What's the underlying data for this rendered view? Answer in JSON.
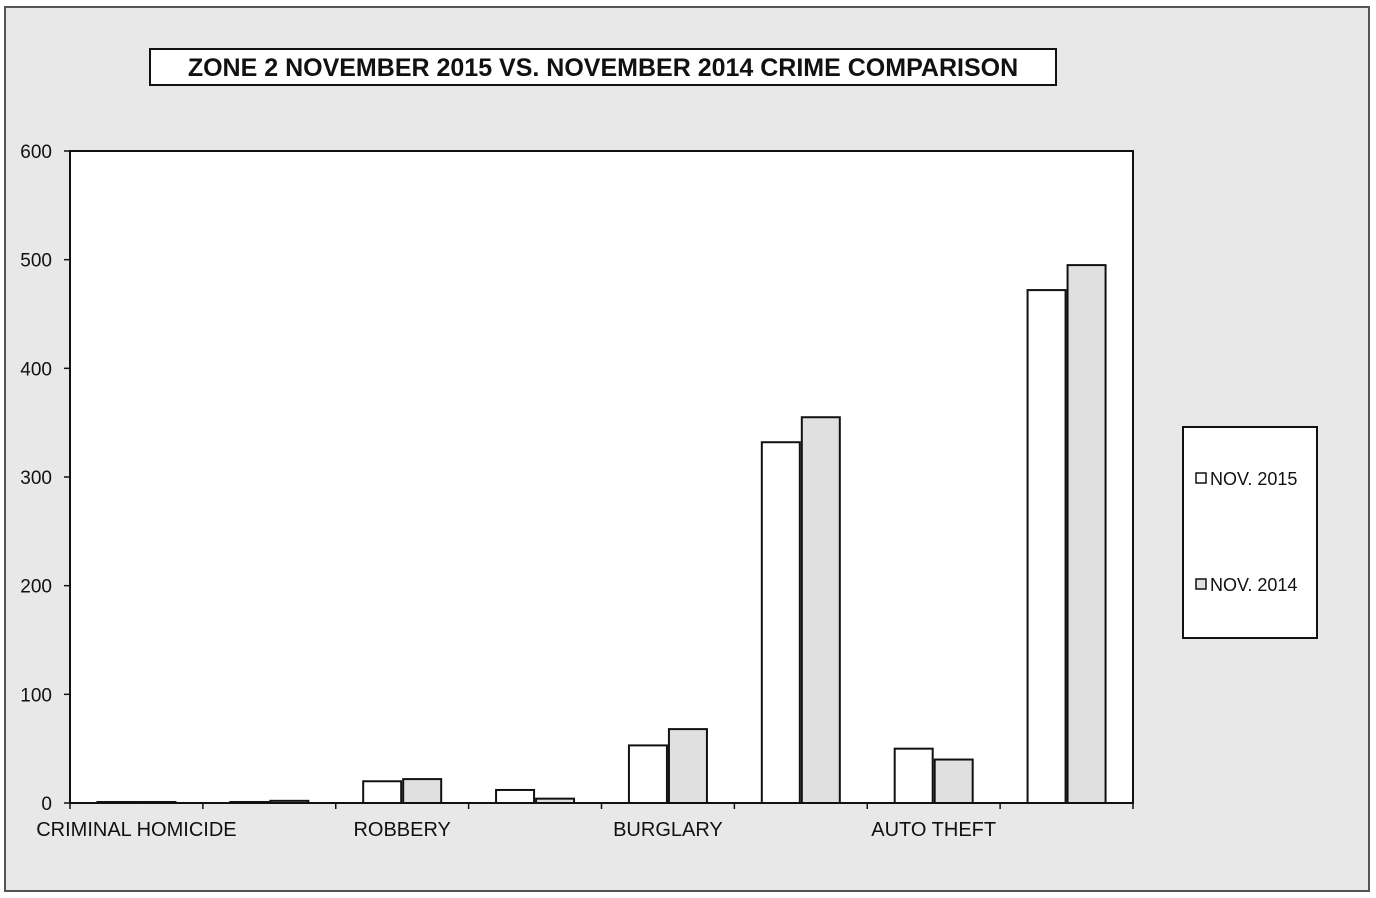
{
  "colors": {
    "background": "#e8e8e8",
    "plot_area": "#ffffff",
    "bar_2015": "#ffffff",
    "bar_2014": "#e0e0e0",
    "stroke": "#111111"
  },
  "chart_data": {
    "type": "bar",
    "title": "ZONE 2  NOVEMBER 2015 VS. NOVEMBER 2014 CRIME COMPARISON",
    "xlabel": "",
    "ylabel": "",
    "ylim": [
      0,
      600
    ],
    "yticks": [
      0,
      100,
      200,
      300,
      400,
      500,
      600
    ],
    "grid": false,
    "legend_position": "right",
    "categories": [
      "CRIMINAL HOMICIDE",
      "",
      "ROBBERY",
      "",
      "BURGLARY",
      "",
      "AUTO THEFT",
      ""
    ],
    "category_labels": [
      {
        "index": 0,
        "text": "CRIMINAL HOMICIDE"
      },
      {
        "index": 2,
        "text": "ROBBERY"
      },
      {
        "index": 4,
        "text": "BURGLARY"
      },
      {
        "index": 6,
        "text": "AUTO THEFT"
      }
    ],
    "series": [
      {
        "name": "NOV. 2015",
        "values": [
          0,
          0,
          20,
          12,
          53,
          332,
          50,
          472
        ]
      },
      {
        "name": "NOV. 2014",
        "values": [
          0,
          2,
          22,
          4,
          68,
          355,
          40,
          495
        ]
      }
    ]
  }
}
